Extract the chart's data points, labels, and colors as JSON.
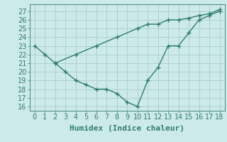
{
  "line1_x": [
    0,
    1,
    2,
    3,
    4,
    5,
    6,
    7,
    8,
    9,
    10,
    11,
    12,
    13,
    14,
    15,
    16,
    17,
    18
  ],
  "line1_y": [
    23,
    22,
    21,
    20,
    19,
    18.5,
    18,
    18,
    17.5,
    16.5,
    16,
    19,
    20.5,
    23,
    23,
    24.5,
    26,
    26.5,
    27
  ],
  "line2_x": [
    2,
    4,
    6,
    8,
    10,
    11,
    12,
    13,
    14,
    15,
    16,
    17,
    18
  ],
  "line2_y": [
    21,
    22,
    23,
    24,
    25,
    25.5,
    25.5,
    26,
    26,
    26.2,
    26.5,
    26.7,
    27.2
  ],
  "line_color": "#2e7d6e",
  "bg_color": "#cdeaea",
  "grid_color": "#aed0d0",
  "xlabel": "Humidex (Indice chaleur)",
  "ylim": [
    15.5,
    27.8
  ],
  "xlim": [
    -0.5,
    18.5
  ],
  "yticks": [
    16,
    17,
    18,
    19,
    20,
    21,
    22,
    23,
    24,
    25,
    26,
    27
  ],
  "xticks": [
    0,
    1,
    2,
    3,
    4,
    5,
    6,
    7,
    8,
    9,
    10,
    11,
    12,
    13,
    14,
    15,
    16,
    17,
    18
  ],
  "marker": "+",
  "markersize": 4,
  "linewidth": 1.0,
  "font_size": 7,
  "xlabel_fontsize": 8
}
